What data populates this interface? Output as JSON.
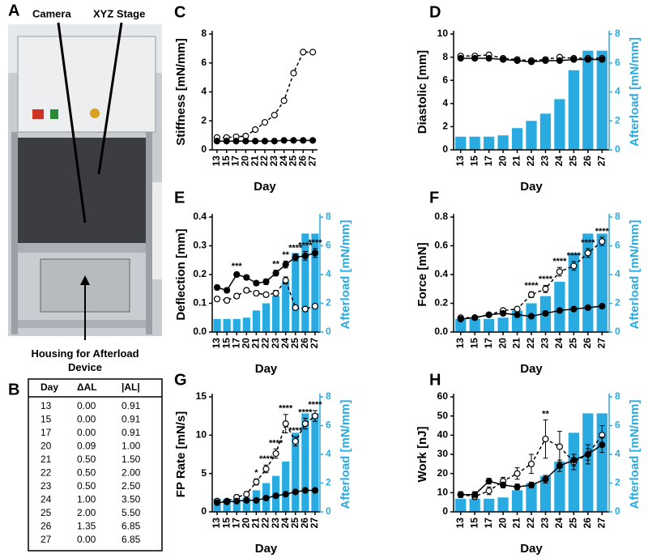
{
  "photo": {
    "label": "A",
    "annotations": [
      "Camera",
      "XYZ Stage",
      "Housing for Afterload Device"
    ]
  },
  "table": {
    "label": "B",
    "header": [
      "Day",
      "ΔAL",
      "|AL|"
    ],
    "rows": [
      [
        "13",
        "0.00",
        "0.91"
      ],
      [
        "15",
        "0.00",
        "0.91"
      ],
      [
        "17",
        "0.00",
        "0.91"
      ],
      [
        "20",
        "0.09",
        "1.00"
      ],
      [
        "21",
        "0.50",
        "1.50"
      ],
      [
        "22",
        "0.50",
        "2.00"
      ],
      [
        "23",
        "0.50",
        "2.50"
      ],
      [
        "24",
        "1.00",
        "3.50"
      ],
      [
        "25",
        "2.00",
        "5.50"
      ],
      [
        "26",
        "1.35",
        "6.85"
      ],
      [
        "27",
        "0.00",
        "6.85"
      ]
    ]
  },
  "chart_data": [
    {
      "type": "line",
      "label": "C",
      "xlabel": "Day",
      "ylabel": "Stiffness [mN/mm]",
      "categories": [
        "13",
        "15",
        "17",
        "20",
        "21",
        "22",
        "23",
        "24",
        "25",
        "26",
        "27"
      ],
      "ylim": [
        0,
        8
      ],
      "yticks": [
        0,
        2,
        4,
        6,
        8
      ],
      "series": [
        {
          "color": "#000000",
          "marker": "open",
          "dashed": true,
          "values": [
            0.85,
            0.85,
            0.9,
            0.95,
            1.4,
            1.9,
            2.4,
            3.4,
            5.3,
            6.75,
            6.75
          ]
        },
        {
          "color": "#000000",
          "marker": "filled",
          "dashed": false,
          "values": [
            0.6,
            0.6,
            0.6,
            0.6,
            0.6,
            0.6,
            0.6,
            0.65,
            0.65,
            0.65,
            0.65
          ]
        }
      ]
    },
    {
      "type": "combo",
      "label": "D",
      "xlabel": "Day",
      "ylabel": "Diastolic [mm]",
      "y2label": "Afterload [mN/mm]",
      "categories": [
        "13",
        "15",
        "17",
        "20",
        "21",
        "22",
        "23",
        "24",
        "25",
        "26",
        "27"
      ],
      "ylim": [
        0,
        10
      ],
      "yticks": [
        0,
        2,
        4,
        6,
        8,
        10
      ],
      "y2lim": [
        0,
        8
      ],
      "y2ticks": [
        0,
        2,
        4,
        6,
        8
      ],
      "series": [
        {
          "type": "bar",
          "axis": "y2",
          "color": "#29abe2",
          "values": [
            0.91,
            0.91,
            0.91,
            1.0,
            1.5,
            2.0,
            2.5,
            3.5,
            5.5,
            6.85,
            6.85
          ]
        },
        {
          "color": "#000000",
          "marker": "open",
          "dashed": true,
          "values": [
            8.1,
            8.1,
            8.2,
            7.9,
            7.8,
            7.7,
            7.8,
            8.0,
            7.9,
            7.9,
            7.9
          ]
        },
        {
          "color": "#000000",
          "marker": "filled",
          "dashed": false,
          "values": [
            7.9,
            7.9,
            7.9,
            7.8,
            7.7,
            7.6,
            7.7,
            7.7,
            7.8,
            7.8,
            7.8
          ]
        }
      ]
    },
    {
      "type": "combo",
      "label": "E",
      "xlabel": "Day",
      "ylabel": "Deflection [mm]",
      "y2label": "Afterload [mN/mm]",
      "categories": [
        "13",
        "15",
        "17",
        "20",
        "21",
        "22",
        "23",
        "24",
        "25",
        "26",
        "27"
      ],
      "ylim": [
        0,
        0.4
      ],
      "yticks": [
        {
          "value": 0,
          "label": "0.0"
        },
        0.1,
        0.2,
        0.3,
        0.4
      ],
      "y2lim": [
        0,
        8
      ],
      "y2ticks": [
        0,
        2,
        4,
        6,
        8
      ],
      "series": [
        {
          "type": "bar",
          "axis": "y2",
          "color": "#29abe2",
          "values": [
            0.91,
            0.91,
            0.91,
            1.0,
            1.5,
            2.0,
            2.5,
            3.5,
            5.5,
            6.85,
            6.85
          ]
        },
        {
          "color": "#000000",
          "marker": "open",
          "dashed": true,
          "values": [
            0.115,
            0.11,
            0.125,
            0.145,
            0.135,
            0.13,
            0.135,
            0.18,
            0.085,
            0.08,
            0.09
          ],
          "errors": [
            0.008,
            0.008,
            0.008,
            0.008,
            0.008,
            0.008,
            0.01,
            0.012,
            0.006,
            0.006,
            0.006
          ]
        },
        {
          "color": "#000000",
          "marker": "filled",
          "dashed": false,
          "values": [
            0.155,
            0.145,
            0.2,
            0.19,
            0.17,
            0.175,
            0.205,
            0.235,
            0.26,
            0.265,
            0.275
          ],
          "errors": [
            0.008,
            0.008,
            0.008,
            0.008,
            0.008,
            0.01,
            0.01,
            0.012,
            0.012,
            0.015,
            0.015
          ]
        }
      ],
      "annotations": [
        {
          "x": "17",
          "text": "***"
        },
        {
          "x": "23",
          "text": "**"
        },
        {
          "x": "24",
          "text": "**"
        },
        {
          "x": "25",
          "text": "****"
        },
        {
          "x": "26",
          "text": "****"
        },
        {
          "x": "27",
          "text": "****"
        }
      ]
    },
    {
      "type": "combo",
      "label": "F",
      "xlabel": "Day",
      "ylabel": "Force [mN]",
      "y2label": "Afterload [mN/mm]",
      "categories": [
        "13",
        "15",
        "17",
        "20",
        "21",
        "22",
        "23",
        "24",
        "25",
        "26",
        "27"
      ],
      "ylim": [
        0,
        0.8
      ],
      "yticks": [
        {
          "value": 0,
          "label": "0.0"
        },
        0.2,
        0.4,
        0.6,
        0.8
      ],
      "y2lim": [
        0,
        8
      ],
      "y2ticks": [
        0,
        2,
        4,
        6,
        8
      ],
      "series": [
        {
          "type": "bar",
          "axis": "y2",
          "color": "#29abe2",
          "values": [
            0.91,
            0.91,
            0.91,
            1.0,
            1.5,
            2.0,
            2.5,
            3.5,
            5.5,
            6.85,
            6.85
          ]
        },
        {
          "color": "#000000",
          "marker": "open",
          "dashed": true,
          "values": [
            0.1,
            0.1,
            0.12,
            0.15,
            0.16,
            0.26,
            0.3,
            0.42,
            0.46,
            0.55,
            0.63
          ],
          "errors": [
            0.01,
            0.01,
            0.01,
            0.01,
            0.015,
            0.02,
            0.025,
            0.03,
            0.03,
            0.03,
            0.03
          ]
        },
        {
          "color": "#000000",
          "marker": "filled",
          "dashed": false,
          "values": [
            0.09,
            0.1,
            0.12,
            0.13,
            0.12,
            0.11,
            0.13,
            0.15,
            0.16,
            0.17,
            0.18
          ],
          "errors": [
            0.005,
            0.005,
            0.005,
            0.005,
            0.005,
            0.005,
            0.005,
            0.005,
            0.005,
            0.005,
            0.005
          ]
        }
      ],
      "annotations": [
        {
          "x": "22",
          "text": "****"
        },
        {
          "x": "23",
          "text": "****"
        },
        {
          "x": "24",
          "text": "****"
        },
        {
          "x": "25",
          "text": "****"
        },
        {
          "x": "26",
          "text": "****"
        },
        {
          "x": "27",
          "text": "****"
        }
      ]
    },
    {
      "type": "combo",
      "label": "G",
      "xlabel": "Day",
      "ylabel": "FP Rate [mN/s]",
      "y2label": "Afterload [mN/mm]",
      "categories": [
        "13",
        "15",
        "17",
        "20",
        "21",
        "22",
        "23",
        "24",
        "25",
        "26",
        "27"
      ],
      "ylim": [
        0,
        15
      ],
      "yticks": [
        0,
        5,
        10,
        15
      ],
      "y2lim": [
        0,
        8
      ],
      "y2ticks": [
        0,
        2,
        4,
        6,
        8
      ],
      "series": [
        {
          "type": "bar",
          "axis": "y2",
          "color": "#29abe2",
          "values": [
            0.91,
            0.91,
            0.91,
            1.0,
            1.5,
            2.0,
            2.5,
            3.5,
            5.5,
            6.85,
            6.85
          ]
        },
        {
          "color": "#000000",
          "marker": "open",
          "dashed": true,
          "values": [
            1.4,
            1.4,
            1.9,
            2.3,
            3.9,
            5.6,
            7.6,
            11.5,
            9.2,
            11.5,
            12.5
          ],
          "errors": [
            0.2,
            0.2,
            0.3,
            0.3,
            0.4,
            0.5,
            0.6,
            1.2,
            0.6,
            0.7,
            0.7
          ]
        },
        {
          "color": "#000000",
          "marker": "filled",
          "dashed": false,
          "values": [
            1.2,
            1.3,
            1.4,
            1.5,
            1.5,
            1.8,
            2.1,
            2.3,
            2.6,
            2.8,
            2.8
          ],
          "errors": [
            0.1,
            0.1,
            0.1,
            0.1,
            0.1,
            0.1,
            0.1,
            0.1,
            0.1,
            0.1,
            0.1
          ]
        }
      ],
      "annotations": [
        {
          "x": "21",
          "text": "*"
        },
        {
          "x": "22",
          "text": "****"
        },
        {
          "x": "23",
          "text": "****"
        },
        {
          "x": "24",
          "text": "****"
        },
        {
          "x": "25",
          "text": "****"
        },
        {
          "x": "26",
          "text": "****"
        },
        {
          "x": "27",
          "text": "****"
        }
      ]
    },
    {
      "type": "combo",
      "label": "H",
      "xlabel": "Day",
      "ylabel": "Work [nJ]",
      "y2label": "Afterload [mN/mm]",
      "categories": [
        "13",
        "15",
        "17",
        "20",
        "21",
        "22",
        "23",
        "24",
        "25",
        "26",
        "27"
      ],
      "ylim": [
        0,
        60
      ],
      "yticks": [
        0,
        10,
        20,
        30,
        40,
        50,
        60
      ],
      "y2lim": [
        0,
        8
      ],
      "y2ticks": [
        0,
        2,
        4,
        6,
        8
      ],
      "series": [
        {
          "type": "bar",
          "axis": "y2",
          "color": "#29abe2",
          "values": [
            0.91,
            0.91,
            0.91,
            1.0,
            1.5,
            2.0,
            2.5,
            3.5,
            5.5,
            6.85,
            6.85
          ]
        },
        {
          "color": "#000000",
          "marker": "open",
          "dashed": true,
          "values": [
            9,
            8,
            11,
            16,
            20,
            25,
            38,
            34,
            26,
            30,
            40
          ],
          "errors": [
            1.5,
            1.5,
            2,
            2,
            3,
            5,
            10,
            8,
            4,
            5,
            5
          ]
        },
        {
          "color": "#000000",
          "marker": "filled",
          "dashed": false,
          "values": [
            9,
            9,
            16,
            14,
            13,
            14,
            17,
            24,
            27,
            30,
            35
          ],
          "errors": [
            1.5,
            1.5,
            1.5,
            1.5,
            1.5,
            1.5,
            2,
            3,
            3,
            3,
            4
          ]
        }
      ],
      "annotations": [
        {
          "x": "23",
          "text": "**"
        }
      ]
    }
  ]
}
